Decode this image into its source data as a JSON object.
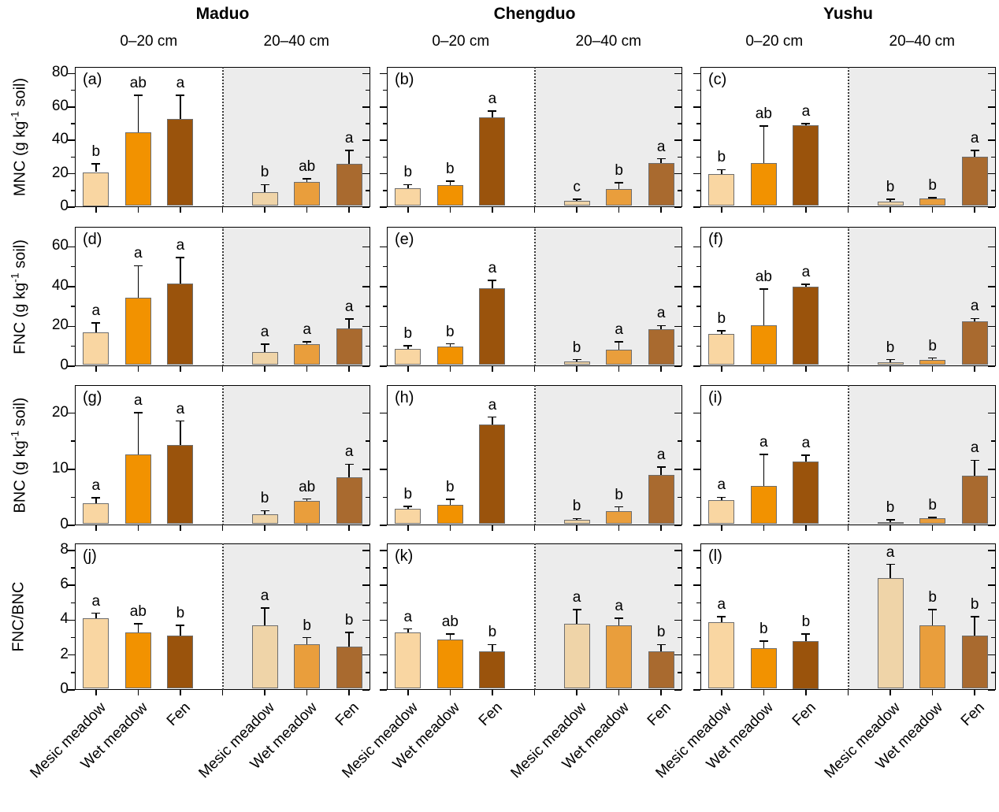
{
  "chart_data": {
    "type": "bar",
    "title": "",
    "locations": [
      "Maduo",
      "Chengduo",
      "Yushu"
    ],
    "depth_labels": [
      "0–20 cm",
      "20–40 cm"
    ],
    "categories": [
      "Mesic meadow",
      "Wet meadow",
      "Fen"
    ],
    "legend_position": "none",
    "grid": false,
    "colors": {
      "bars_0_20": [
        "#F9D6A2",
        "#F29200",
        "#9A530C"
      ],
      "bars_20_40": [
        "#EFD4A8",
        "#E99E3C",
        "#A96A2F"
      ],
      "deep_layer_background": "#ECECEC",
      "axis": "#000000"
    },
    "rows": [
      {
        "ylabel": {
          "prefix": "MNC (g kg",
          "sup": "-1",
          "suffix": " soil)"
        },
        "ylabel_text": "MNC (g kg-1 soil)",
        "yticks": [
          0,
          20,
          40,
          60,
          80
        ],
        "yminor": [
          10,
          30,
          50,
          70
        ],
        "ylim": [
          0,
          84
        ],
        "panels": [
          {
            "label": "(a)",
            "location": "Maduo",
            "groups": [
              {
                "depth": "0–20 cm",
                "values": [
                  21,
                  45,
                  53
                ],
                "errors": [
                  5,
                  22,
                  14
                ],
                "letters": [
                  "b",
                  "ab",
                  "a"
                ]
              },
              {
                "depth": "20–40 cm",
                "values": [
                  9,
                  15,
                  26
                ],
                "errors": [
                  4.5,
                  2,
                  8
                ],
                "letters": [
                  "b",
                  "ab",
                  "a"
                ]
              }
            ]
          },
          {
            "label": "(b)",
            "location": "Chengduo",
            "groups": [
              {
                "depth": "0–20 cm",
                "values": [
                  11.5,
                  13,
                  54
                ],
                "errors": [
                  2,
                  2.5,
                  3.5
                ],
                "letters": [
                  "b",
                  "b",
                  "a"
                ]
              },
              {
                "depth": "20–40 cm",
                "values": [
                  3.7,
                  11,
                  26.5
                ],
                "errors": [
                  1,
                  3.5,
                  2.5
                ],
                "letters": [
                  "c",
                  "b",
                  "a"
                ]
              }
            ]
          },
          {
            "label": "(c)",
            "location": "Yushu",
            "groups": [
              {
                "depth": "0–20 cm",
                "values": [
                  20,
                  26.5,
                  49
                ],
                "errors": [
                  2.5,
                  22,
                  1
                ],
                "letters": [
                  "b",
                  "ab",
                  "a"
                ]
              },
              {
                "depth": "20–40 cm",
                "values": [
                  3.3,
                  5.1,
                  30
                ],
                "errors": [
                  1.5,
                  0.7,
                  4
                ],
                "letters": [
                  "b",
                  "b",
                  "a"
                ]
              }
            ]
          }
        ]
      },
      {
        "ylabel": {
          "prefix": "FNC (g kg",
          "sup": "-1",
          "suffix": " soil)"
        },
        "ylabel_text": "FNC (g kg-1 soil)",
        "yticks": [
          0,
          20,
          40,
          60
        ],
        "yminor": [
          10,
          30,
          50
        ],
        "ylim": [
          0,
          70
        ],
        "panels": [
          {
            "label": "(d)",
            "location": "Maduo",
            "groups": [
              {
                "depth": "0–20 cm",
                "values": [
                  17,
                  34.5,
                  41.5
                ],
                "errors": [
                  4.7,
                  16,
                  13
                ],
                "letters": [
                  "a",
                  "a",
                  "a"
                ]
              },
              {
                "depth": "20–40 cm",
                "values": [
                  7.1,
                  11.1,
                  19
                ],
                "errors": [
                  4,
                  1.1,
                  4.7
                ],
                "letters": [
                  "a",
                  "a",
                  "a"
                ]
              }
            ]
          },
          {
            "label": "(e)",
            "location": "Chengduo",
            "groups": [
              {
                "depth": "0–20 cm",
                "values": [
                  8.7,
                  9.8,
                  39
                ],
                "errors": [
                  1.5,
                  1.4,
                  4.2
                ],
                "letters": [
                  "b",
                  "b",
                  "a"
                ]
              },
              {
                "depth": "20–40 cm",
                "values": [
                  2.4,
                  8.4,
                  18.6
                ],
                "errors": [
                  0.9,
                  3.9,
                  1.8
                ],
                "letters": [
                  "b",
                  "a",
                  "a"
                ]
              }
            ]
          },
          {
            "label": "(f)",
            "location": "Yushu",
            "groups": [
              {
                "depth": "0–20 cm",
                "values": [
                  16.2,
                  20.4,
                  40
                ],
                "errors": [
                  1.6,
                  18.3,
                  1.2
                ],
                "letters": [
                  "b",
                  "ab",
                  "a"
                ]
              },
              {
                "depth": "20–40 cm",
                "values": [
                  2,
                  3.2,
                  22.7
                ],
                "errors": [
                  1.3,
                  0.9,
                  1.3
                ],
                "letters": [
                  "b",
                  "b",
                  "a"
                ]
              }
            ]
          }
        ]
      },
      {
        "ylabel": {
          "prefix": "BNC (g kg",
          "sup": "-1",
          "suffix": " soil)"
        },
        "ylabel_text": "BNC (g kg-1 soil)",
        "yticks": [
          0,
          10,
          20
        ],
        "yminor": [
          5,
          15
        ],
        "ylim": [
          0,
          25
        ],
        "panels": [
          {
            "label": "(g)",
            "location": "Maduo",
            "groups": [
              {
                "depth": "0–20 cm",
                "values": [
                  4,
                  12.6,
                  14.3
                ],
                "errors": [
                  0.9,
                  7.5,
                  4.3
                ],
                "letters": [
                  "a",
                  "a",
                  "a"
                ]
              },
              {
                "depth": "20–40 cm",
                "values": [
                  1.9,
                  4.3,
                  8.5
                ],
                "errors": [
                  0.7,
                  0.4,
                  2.4
                ],
                "letters": [
                  "b",
                  "ab",
                  "a"
                ]
              }
            ]
          },
          {
            "label": "(h)",
            "location": "Chengduo",
            "groups": [
              {
                "depth": "0–20 cm",
                "values": [
                  3,
                  3.7,
                  18
                ],
                "errors": [
                  0.4,
                  0.9,
                  1.3
                ],
                "letters": [
                  "b",
                  "b",
                  "a"
                ]
              },
              {
                "depth": "20–40 cm",
                "values": [
                  1,
                  2.5,
                  9
                ],
                "errors": [
                  0.2,
                  0.8,
                  1.4
                ],
                "letters": [
                  "b",
                  "b",
                  "a"
                ]
              }
            ]
          },
          {
            "label": "(i)",
            "location": "Yushu",
            "groups": [
              {
                "depth": "0–20 cm",
                "values": [
                  4.5,
                  7,
                  11.4
                ],
                "errors": [
                  0.5,
                  5.6,
                  1.1
                ],
                "letters": [
                  "a",
                  "a",
                  "a"
                ]
              },
              {
                "depth": "20–40 cm",
                "values": [
                  0.6,
                  1.2,
                  8.9
                ],
                "errors": [
                  0.4,
                  0.2,
                  2.7
                ],
                "letters": [
                  "b",
                  "b",
                  "a"
                ]
              }
            ]
          }
        ]
      },
      {
        "ylabel": {
          "prefix": "FNC/BNC",
          "sup": "",
          "suffix": ""
        },
        "ylabel_text": "FNC/BNC",
        "yticks": [
          0,
          2,
          4,
          6,
          8
        ],
        "yminor": [
          1,
          3,
          5,
          7
        ],
        "ylim": [
          0,
          8.4
        ],
        "panels": [
          {
            "label": "(j)",
            "location": "Maduo",
            "groups": [
              {
                "depth": "0–20 cm",
                "values": [
                  4.1,
                  3.3,
                  3.1
                ],
                "errors": [
                  0.3,
                  0.5,
                  0.6
                ],
                "letters": [
                  "a",
                  "ab",
                  "b"
                ]
              },
              {
                "depth": "20–40 cm",
                "values": [
                  3.7,
                  2.6,
                  2.5
                ],
                "errors": [
                  1,
                  0.4,
                  0.8
                ],
                "letters": [
                  "a",
                  "b",
                  "b"
                ]
              }
            ]
          },
          {
            "label": "(k)",
            "location": "Chengduo",
            "groups": [
              {
                "depth": "0–20 cm",
                "values": [
                  3.3,
                  2.9,
                  2.2
                ],
                "errors": [
                  0.2,
                  0.3,
                  0.4
                ],
                "letters": [
                  "a",
                  "ab",
                  "b"
                ]
              },
              {
                "depth": "20–40 cm",
                "values": [
                  3.8,
                  3.7,
                  2.2
                ],
                "errors": [
                  0.8,
                  0.4,
                  0.4
                ],
                "letters": [
                  "a",
                  "a",
                  "b"
                ]
              }
            ]
          },
          {
            "label": "(l)",
            "location": "Yushu",
            "groups": [
              {
                "depth": "0–20 cm",
                "values": [
                  3.9,
                  2.4,
                  2.8
                ],
                "errors": [
                  0.3,
                  0.4,
                  0.4
                ],
                "letters": [
                  "a",
                  "b",
                  "b"
                ]
              },
              {
                "depth": "20–40 cm",
                "values": [
                  6.4,
                  3.7,
                  3.1
                ],
                "errors": [
                  0.8,
                  0.9,
                  1.1
                ],
                "letters": [
                  "a",
                  "b",
                  "b"
                ]
              }
            ]
          }
        ]
      }
    ]
  }
}
